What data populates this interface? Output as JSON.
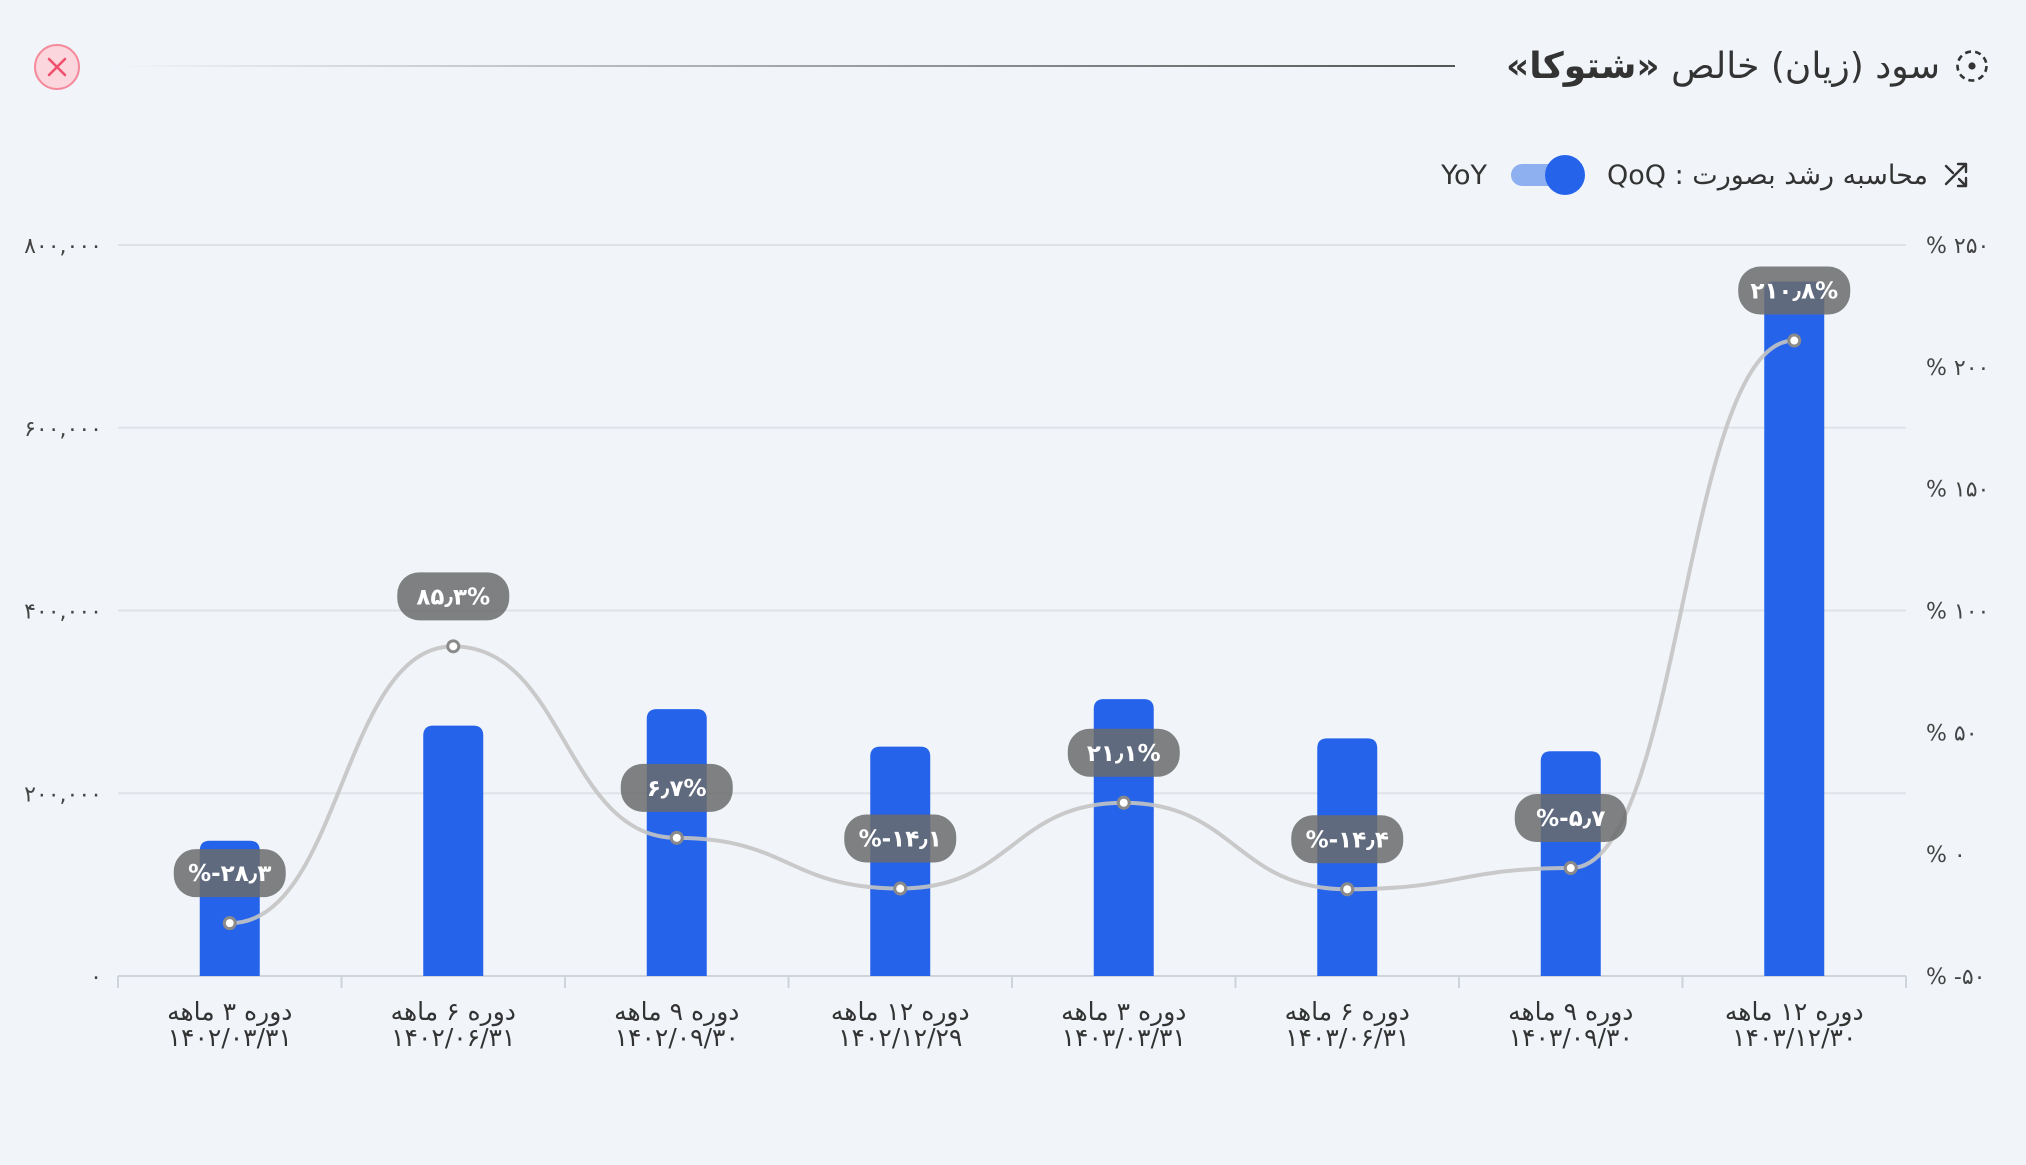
{
  "header": {
    "title_prefix": "سود (زیان) خالص",
    "title_company": "«شتوکا»",
    "icon": "dotted-circle-icon",
    "close_icon": "close-icon"
  },
  "toggle": {
    "label": "محاسبه رشد بصورت : QoQ",
    "off_label": "YoY",
    "icon": "trend-arrows-icon",
    "state": "QoQ"
  },
  "colors": {
    "bar": "#2563eb",
    "growth_line": "#c4c4c4",
    "badge": "#6b6b6b",
    "close": "#f0506e"
  },
  "chart_data": {
    "type": "bar",
    "categories": [
      {
        "period": "دوره ۳ ماهه",
        "date": "۱۴۰۲/۰۳/۳۱"
      },
      {
        "period": "دوره ۶ ماهه",
        "date": "۱۴۰۲/۰۶/۳۱"
      },
      {
        "period": "دوره ۹ ماهه",
        "date": "۱۴۰۲/۰۹/۳۰"
      },
      {
        "period": "دوره ۱۲ ماهه",
        "date": "۱۴۰۲/۱۲/۲۹"
      },
      {
        "period": "دوره ۳ ماهه",
        "date": "۱۴۰۳/۰۳/۳۱"
      },
      {
        "period": "دوره ۶ ماهه",
        "date": "۱۴۰۳/۰۶/۳۱"
      },
      {
        "period": "دوره ۹ ماهه",
        "date": "۱۴۰۳/۰۹/۳۰"
      },
      {
        "period": "دوره ۱۲ ماهه",
        "date": "۱۴۰۳/۱۲/۳۰"
      }
    ],
    "values": [
      148000,
      274000,
      292000,
      251000,
      303000,
      260000,
      246000,
      760000
    ],
    "growth": [
      -28.3,
      85.3,
      6.7,
      -14.1,
      21.1,
      -14.4,
      -5.7,
      210.8
    ],
    "growth_labels": [
      "%-۲۸٫۳",
      "۸۵٫۳%",
      "۶٫۷%",
      "%-۱۴٫۱",
      "۲۱٫۱%",
      "%-۱۴٫۴",
      "%-۵٫۷",
      "۲۱۰٫۸%"
    ],
    "ylim": [
      0,
      800000
    ],
    "y_ticks": [
      0,
      200000,
      400000,
      600000,
      800000
    ],
    "y_tick_labels": [
      "۰",
      "۲۰۰,۰۰۰",
      "۴۰۰,۰۰۰",
      "۶۰۰,۰۰۰",
      "۸۰۰,۰۰۰"
    ],
    "y2lim": [
      -50,
      250
    ],
    "y2_ticks": [
      -50,
      0,
      50,
      100,
      150,
      200,
      250
    ],
    "y2_tick_labels": [
      "% -۵۰",
      "% ۰",
      "% ۵۰",
      "% ۱۰۰",
      "% ۱۵۰",
      "% ۲۰۰",
      "% ۲۵۰"
    ],
    "grid": true
  }
}
